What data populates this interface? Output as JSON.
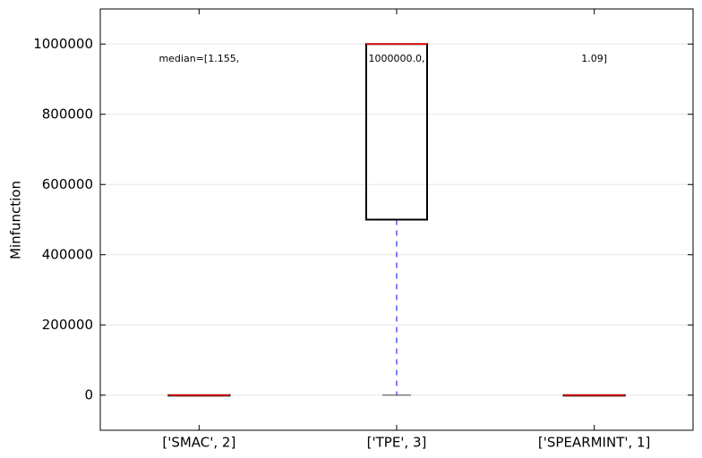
{
  "chart_data": {
    "type": "box",
    "ylabel": "Minfunction",
    "categories": [
      "['SMAC', 2]",
      "['TPE', 3]",
      "['SPEARMINT', 1]"
    ],
    "boxes": [
      {
        "min": 1.155,
        "q1": 1.155,
        "median": 1.155,
        "q3": 1.155,
        "max": 1.155
      },
      {
        "min": 0,
        "q1": 500000,
        "median": 1000000,
        "q3": 1000000,
        "max": 1000000
      },
      {
        "min": 1.09,
        "q1": 1.09,
        "median": 1.09,
        "q3": 1.09,
        "max": 1.09
      }
    ],
    "annotations": [
      "median=[1.155,",
      "1000000.0,",
      "1.09]"
    ],
    "box_color": "#000000",
    "median_color": "#ff0000",
    "whisker_color": "#0000ff",
    "ylim": [
      -100000,
      1100000
    ],
    "yticks": [
      0,
      200000,
      400000,
      600000,
      800000,
      1000000
    ],
    "grid": true
  }
}
